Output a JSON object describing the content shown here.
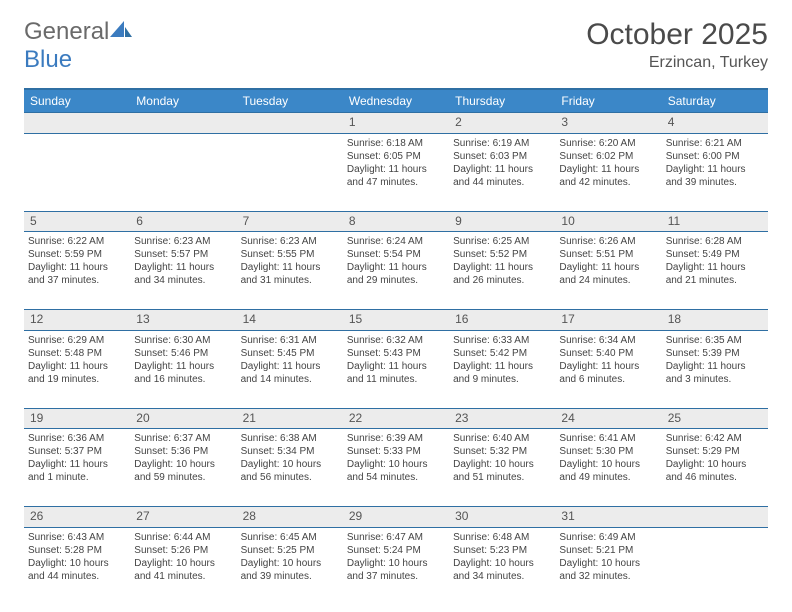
{
  "brand": {
    "part1": "General",
    "part2": "Blue"
  },
  "title": "October 2025",
  "location": "Erzincan, Turkey",
  "colors": {
    "header_bg": "#3b87c8",
    "header_border": "#2f6fa3",
    "daynum_bg": "#ececec",
    "text": "#3a3a3a"
  },
  "days": [
    "Sunday",
    "Monday",
    "Tuesday",
    "Wednesday",
    "Thursday",
    "Friday",
    "Saturday"
  ],
  "weeks": [
    {
      "nums": [
        "",
        "",
        "",
        "1",
        "2",
        "3",
        "4"
      ],
      "cells": [
        null,
        null,
        null,
        {
          "sr": "Sunrise: 6:18 AM",
          "ss": "Sunset: 6:05 PM",
          "d1": "Daylight: 11 hours",
          "d2": "and 47 minutes."
        },
        {
          "sr": "Sunrise: 6:19 AM",
          "ss": "Sunset: 6:03 PM",
          "d1": "Daylight: 11 hours",
          "d2": "and 44 minutes."
        },
        {
          "sr": "Sunrise: 6:20 AM",
          "ss": "Sunset: 6:02 PM",
          "d1": "Daylight: 11 hours",
          "d2": "and 42 minutes."
        },
        {
          "sr": "Sunrise: 6:21 AM",
          "ss": "Sunset: 6:00 PM",
          "d1": "Daylight: 11 hours",
          "d2": "and 39 minutes."
        }
      ]
    },
    {
      "nums": [
        "5",
        "6",
        "7",
        "8",
        "9",
        "10",
        "11"
      ],
      "cells": [
        {
          "sr": "Sunrise: 6:22 AM",
          "ss": "Sunset: 5:59 PM",
          "d1": "Daylight: 11 hours",
          "d2": "and 37 minutes."
        },
        {
          "sr": "Sunrise: 6:23 AM",
          "ss": "Sunset: 5:57 PM",
          "d1": "Daylight: 11 hours",
          "d2": "and 34 minutes."
        },
        {
          "sr": "Sunrise: 6:23 AM",
          "ss": "Sunset: 5:55 PM",
          "d1": "Daylight: 11 hours",
          "d2": "and 31 minutes."
        },
        {
          "sr": "Sunrise: 6:24 AM",
          "ss": "Sunset: 5:54 PM",
          "d1": "Daylight: 11 hours",
          "d2": "and 29 minutes."
        },
        {
          "sr": "Sunrise: 6:25 AM",
          "ss": "Sunset: 5:52 PM",
          "d1": "Daylight: 11 hours",
          "d2": "and 26 minutes."
        },
        {
          "sr": "Sunrise: 6:26 AM",
          "ss": "Sunset: 5:51 PM",
          "d1": "Daylight: 11 hours",
          "d2": "and 24 minutes."
        },
        {
          "sr": "Sunrise: 6:28 AM",
          "ss": "Sunset: 5:49 PM",
          "d1": "Daylight: 11 hours",
          "d2": "and 21 minutes."
        }
      ]
    },
    {
      "nums": [
        "12",
        "13",
        "14",
        "15",
        "16",
        "17",
        "18"
      ],
      "cells": [
        {
          "sr": "Sunrise: 6:29 AM",
          "ss": "Sunset: 5:48 PM",
          "d1": "Daylight: 11 hours",
          "d2": "and 19 minutes."
        },
        {
          "sr": "Sunrise: 6:30 AM",
          "ss": "Sunset: 5:46 PM",
          "d1": "Daylight: 11 hours",
          "d2": "and 16 minutes."
        },
        {
          "sr": "Sunrise: 6:31 AM",
          "ss": "Sunset: 5:45 PM",
          "d1": "Daylight: 11 hours",
          "d2": "and 14 minutes."
        },
        {
          "sr": "Sunrise: 6:32 AM",
          "ss": "Sunset: 5:43 PM",
          "d1": "Daylight: 11 hours",
          "d2": "and 11 minutes."
        },
        {
          "sr": "Sunrise: 6:33 AM",
          "ss": "Sunset: 5:42 PM",
          "d1": "Daylight: 11 hours",
          "d2": "and 9 minutes."
        },
        {
          "sr": "Sunrise: 6:34 AM",
          "ss": "Sunset: 5:40 PM",
          "d1": "Daylight: 11 hours",
          "d2": "and 6 minutes."
        },
        {
          "sr": "Sunrise: 6:35 AM",
          "ss": "Sunset: 5:39 PM",
          "d1": "Daylight: 11 hours",
          "d2": "and 3 minutes."
        }
      ]
    },
    {
      "nums": [
        "19",
        "20",
        "21",
        "22",
        "23",
        "24",
        "25"
      ],
      "cells": [
        {
          "sr": "Sunrise: 6:36 AM",
          "ss": "Sunset: 5:37 PM",
          "d1": "Daylight: 11 hours",
          "d2": "and 1 minute."
        },
        {
          "sr": "Sunrise: 6:37 AM",
          "ss": "Sunset: 5:36 PM",
          "d1": "Daylight: 10 hours",
          "d2": "and 59 minutes."
        },
        {
          "sr": "Sunrise: 6:38 AM",
          "ss": "Sunset: 5:34 PM",
          "d1": "Daylight: 10 hours",
          "d2": "and 56 minutes."
        },
        {
          "sr": "Sunrise: 6:39 AM",
          "ss": "Sunset: 5:33 PM",
          "d1": "Daylight: 10 hours",
          "d2": "and 54 minutes."
        },
        {
          "sr": "Sunrise: 6:40 AM",
          "ss": "Sunset: 5:32 PM",
          "d1": "Daylight: 10 hours",
          "d2": "and 51 minutes."
        },
        {
          "sr": "Sunrise: 6:41 AM",
          "ss": "Sunset: 5:30 PM",
          "d1": "Daylight: 10 hours",
          "d2": "and 49 minutes."
        },
        {
          "sr": "Sunrise: 6:42 AM",
          "ss": "Sunset: 5:29 PM",
          "d1": "Daylight: 10 hours",
          "d2": "and 46 minutes."
        }
      ]
    },
    {
      "nums": [
        "26",
        "27",
        "28",
        "29",
        "30",
        "31",
        ""
      ],
      "cells": [
        {
          "sr": "Sunrise: 6:43 AM",
          "ss": "Sunset: 5:28 PM",
          "d1": "Daylight: 10 hours",
          "d2": "and 44 minutes."
        },
        {
          "sr": "Sunrise: 6:44 AM",
          "ss": "Sunset: 5:26 PM",
          "d1": "Daylight: 10 hours",
          "d2": "and 41 minutes."
        },
        {
          "sr": "Sunrise: 6:45 AM",
          "ss": "Sunset: 5:25 PM",
          "d1": "Daylight: 10 hours",
          "d2": "and 39 minutes."
        },
        {
          "sr": "Sunrise: 6:47 AM",
          "ss": "Sunset: 5:24 PM",
          "d1": "Daylight: 10 hours",
          "d2": "and 37 minutes."
        },
        {
          "sr": "Sunrise: 6:48 AM",
          "ss": "Sunset: 5:23 PM",
          "d1": "Daylight: 10 hours",
          "d2": "and 34 minutes."
        },
        {
          "sr": "Sunrise: 6:49 AM",
          "ss": "Sunset: 5:21 PM",
          "d1": "Daylight: 10 hours",
          "d2": "and 32 minutes."
        },
        null
      ]
    }
  ]
}
